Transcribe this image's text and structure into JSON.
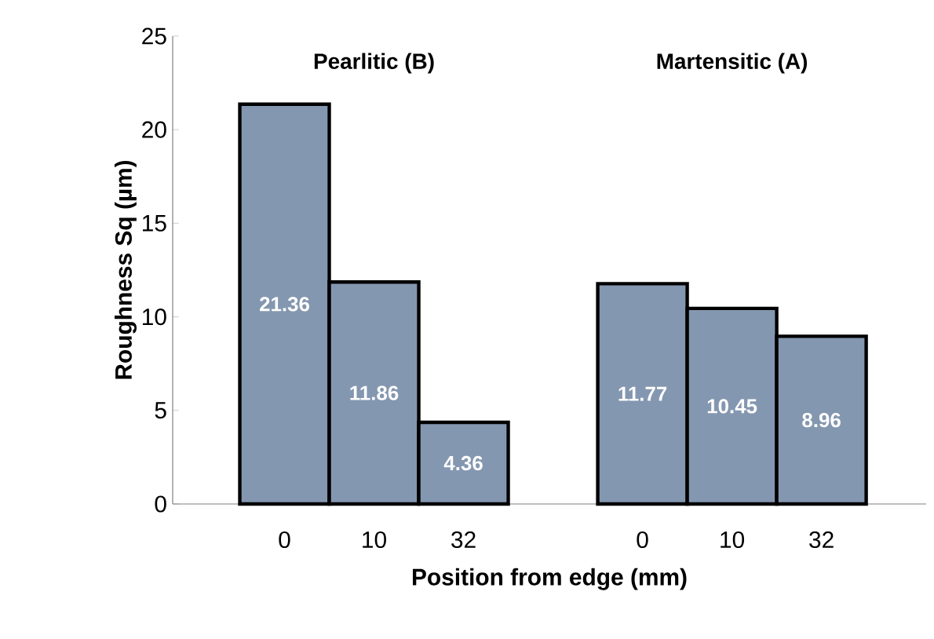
{
  "chart_data": {
    "type": "bar",
    "xlabel": "Position from edge (mm)",
    "ylabel": "Roughness Sq (µm)",
    "categories": [
      "0",
      "10",
      "32",
      null,
      "0",
      "10",
      "32"
    ],
    "values": [
      21.36,
      11.86,
      4.36,
      null,
      11.77,
      10.45,
      8.96
    ],
    "color": "#8497b0",
    "ylim": [
      0,
      25
    ],
    "yticks": [
      0,
      5,
      10,
      15,
      20,
      25
    ],
    "data_labels": true,
    "grid": false,
    "annotations": [
      "Pearlitic (B)",
      "Martensitic (A)"
    ]
  }
}
